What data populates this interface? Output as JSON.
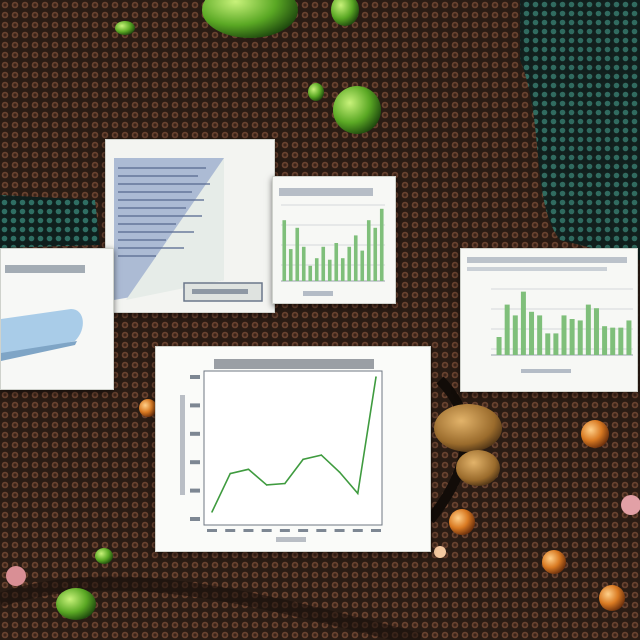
{
  "scene": {
    "description_colors": {
      "background": "#3a2a20",
      "mosaic_brown": "#5b3a2a",
      "mosaic_dark": "#1f1712",
      "teal": "#2f6e63",
      "lime": "#6ebc2e",
      "amber": "#c46a1a"
    }
  },
  "colors": {
    "panel_bg": "#f6f7f4",
    "bar_green": "#7fbf7a",
    "line_green": "#3f9b3f",
    "doc_blue": "#8fa2c5",
    "pill_blue": "#a9cce8"
  },
  "chart_data": [
    {
      "type": "line",
      "values": [
        5,
        32,
        35,
        24,
        25,
        42,
        45,
        33,
        18,
        100
      ],
      "ylim": [
        0,
        100
      ]
    },
    {
      "type": "bar",
      "values": [
        80,
        42,
        70,
        45,
        20,
        30,
        45,
        28,
        50,
        30,
        45,
        60,
        40,
        80,
        70,
        95
      ],
      "ylim": [
        0,
        100
      ]
    },
    {
      "type": "bar",
      "values": [
        25,
        70,
        55,
        88,
        60,
        55,
        30,
        30,
        55,
        50,
        48,
        70,
        65,
        40,
        38,
        38,
        48
      ],
      "ylim": [
        0,
        100
      ]
    }
  ]
}
